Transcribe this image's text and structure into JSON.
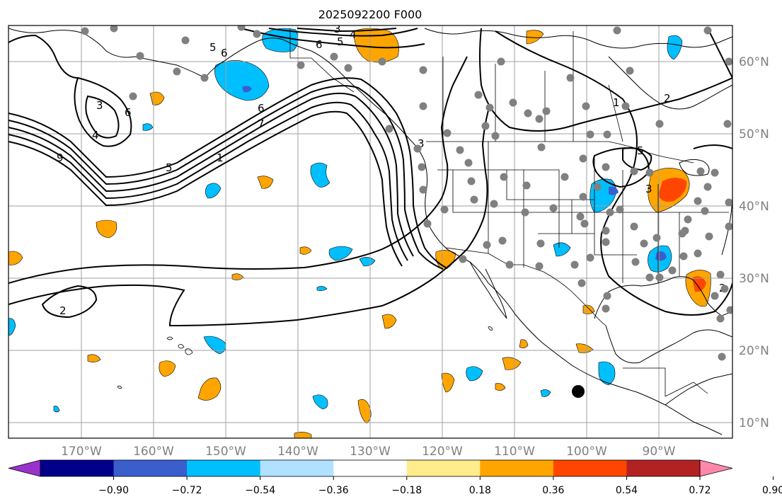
{
  "title": "2025092200 F000",
  "lon_labels": [
    "170°W",
    "160°W",
    "150°W",
    "140°W",
    "130°W",
    "120°W",
    "110°W",
    "100°W",
    "90°W"
  ],
  "lat_labels": [
    "60°N",
    "50°N",
    "40°N",
    "30°N",
    "20°N",
    "10°N"
  ],
  "colorbar": {
    "tick_labels": [
      "−0.90",
      "−0.72",
      "−0.54",
      "−0.36",
      "−0.18",
      "0.18",
      "0.36",
      "0.54",
      "0.72",
      "0.90"
    ],
    "colors": [
      "#9932cc",
      "#00008b",
      "#3a5fcd",
      "#00bfff",
      "#b0e2ff",
      "#ffffff",
      "#ffec8b",
      "#ffa500",
      "#ff4500",
      "#b22222",
      "#ff88aa"
    ],
    "extend": "both"
  },
  "contour_labels": [
    "5",
    "6",
    "6",
    "5",
    "4",
    "3",
    "4",
    "6",
    "3",
    "1",
    "7",
    "6",
    "9",
    "5",
    "3",
    "1",
    "2",
    "5",
    "3",
    "2",
    "2"
  ],
  "colors": {
    "station_dot": "#808080",
    "marker_dot": "#000000",
    "grid": "#a0a0a0",
    "positive_fill": "#ffa500",
    "negative_fill": "#00bfff"
  }
}
